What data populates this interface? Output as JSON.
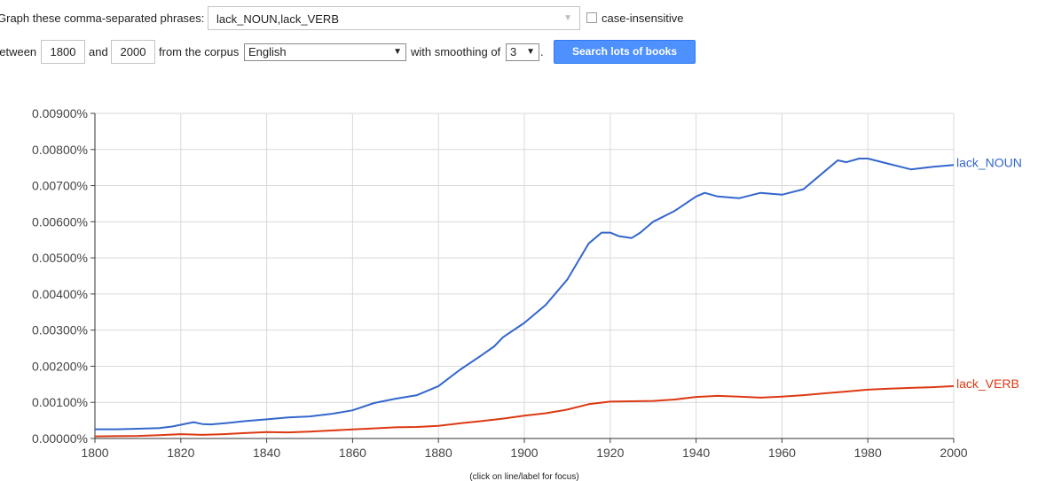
{
  "form": {
    "phrases_label": "Graph these comma-separated phrases:",
    "phrases_value": "lack_NOUN,lack_VERB",
    "case_insensitive_label": "case-insensitive",
    "between_label": "between",
    "start_year": "1800",
    "and_label": "and",
    "end_year": "2000",
    "corpus_label": "from the corpus",
    "corpus_value": "English",
    "smoothing_label": "with smoothing of",
    "smoothing_value": "3",
    "period": ".",
    "search_button": "Search lots of books"
  },
  "footer_hint": "(click on line/label for focus)",
  "chart_data": {
    "type": "line",
    "xlim": [
      1800,
      2000
    ],
    "ylim": [
      0,
      0.009
    ],
    "x_ticks": [
      1800,
      1820,
      1840,
      1860,
      1880,
      1900,
      1920,
      1940,
      1960,
      1980,
      2000
    ],
    "y_ticks": [
      "0.00000%",
      "0.00100%",
      "0.00200%",
      "0.00300%",
      "0.00400%",
      "0.00500%",
      "0.00600%",
      "0.00700%",
      "0.00800%",
      "0.00900%"
    ],
    "grid": true,
    "series": [
      {
        "name": "lack_NOUN",
        "color": "#3366cc",
        "x": [
          1800,
          1805,
          1810,
          1815,
          1818,
          1820,
          1823,
          1825,
          1827,
          1830,
          1835,
          1840,
          1845,
          1850,
          1855,
          1860,
          1865,
          1870,
          1875,
          1880,
          1885,
          1890,
          1893,
          1895,
          1900,
          1905,
          1910,
          1915,
          1918,
          1920,
          1922,
          1925,
          1927,
          1930,
          1935,
          1940,
          1942,
          1945,
          1950,
          1955,
          1960,
          1965,
          1970,
          1973,
          1975,
          1978,
          1980,
          1985,
          1990,
          1995,
          2000
        ],
        "y": [
          0.000255,
          0.000255,
          0.00027,
          0.00029,
          0.00033,
          0.00038,
          0.00045,
          0.0004,
          0.00039,
          0.00042,
          0.00048,
          0.00053,
          0.00058,
          0.00061,
          0.00068,
          0.00078,
          0.00098,
          0.0011,
          0.0012,
          0.00145,
          0.0019,
          0.0023,
          0.00255,
          0.0028,
          0.0032,
          0.0037,
          0.0044,
          0.0054,
          0.0057,
          0.0057,
          0.0056,
          0.00555,
          0.0057,
          0.006,
          0.0063,
          0.0067,
          0.0068,
          0.0067,
          0.00665,
          0.0068,
          0.00675,
          0.0069,
          0.0074,
          0.0077,
          0.00765,
          0.00775,
          0.00775,
          0.0076,
          0.00745,
          0.00752,
          0.00757
        ]
      },
      {
        "name": "lack_VERB",
        "color": "#dc3912",
        "x": [
          1800,
          1810,
          1815,
          1820,
          1825,
          1830,
          1835,
          1840,
          1845,
          1850,
          1855,
          1860,
          1865,
          1870,
          1875,
          1880,
          1885,
          1890,
          1895,
          1900,
          1905,
          1910,
          1915,
          1920,
          1925,
          1930,
          1935,
          1940,
          1945,
          1950,
          1955,
          1960,
          1965,
          1970,
          1975,
          1980,
          1985,
          1990,
          1995,
          2000
        ],
        "y": [
          6e-05,
          7e-05,
          9e-05,
          0.00012,
          0.0001,
          0.00012,
          0.00015,
          0.00018,
          0.00017,
          0.00019,
          0.00022,
          0.00025,
          0.00028,
          0.00031,
          0.00032,
          0.00035,
          0.00042,
          0.00048,
          0.00055,
          0.00063,
          0.0007,
          0.0008,
          0.00095,
          0.00102,
          0.00103,
          0.00104,
          0.00108,
          0.00115,
          0.00118,
          0.00116,
          0.00113,
          0.00116,
          0.0012,
          0.00125,
          0.0013,
          0.00135,
          0.00138,
          0.0014,
          0.00142,
          0.00145
        ]
      }
    ]
  }
}
